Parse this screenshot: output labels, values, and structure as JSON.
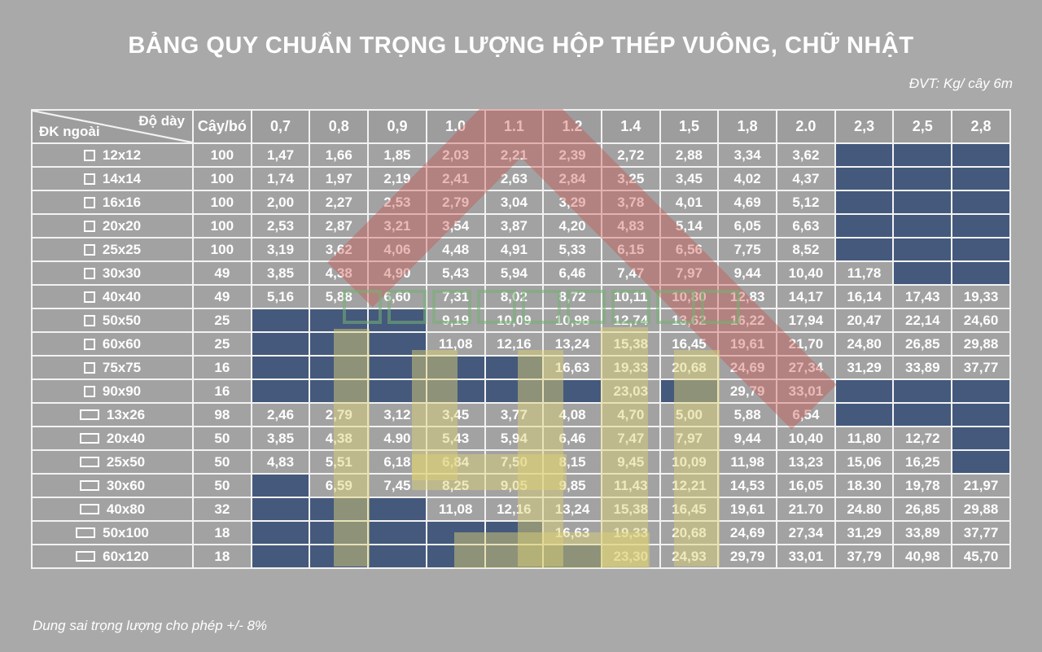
{
  "title": "BẢNG QUY CHUẨN TRỌNG LƯỢNG HỘP THÉP VUÔNG, CHỮ NHẬT",
  "unit_note": "ĐVT: Kg/ cây 6m",
  "footer_note": "Dung sai trọng lượng cho phép +/- 8%",
  "colors": {
    "background": "#a9a9a9",
    "cell": "#a2a2a2",
    "header_cell": "#9d9d9d",
    "empty_cell": "#44597c",
    "grid_border": "#f2f2f2",
    "text": "#ffffff",
    "watermark_red": "#c8524c",
    "watermark_yellow": "#ded277",
    "watermark_green": "#74b172"
  },
  "table": {
    "corner": {
      "top_right": "Độ dày",
      "bottom_left": "ĐK ngoài"
    },
    "bundle_header": "Cây/bó",
    "thickness_headers": [
      "0,7",
      "0,8",
      "0,9",
      "1.0",
      "1.1",
      "1.2",
      "1.4",
      "1,5",
      "1,8",
      "2.0",
      "2,3",
      "2,5",
      "2,8"
    ],
    "rows": [
      {
        "label": "12x12",
        "shape": "square",
        "bundle": "100",
        "values": [
          "1,47",
          "1,66",
          "1,85",
          "2,03",
          "2,21",
          "2,39",
          "2,72",
          "2,88",
          "3,34",
          "3,62",
          null,
          null,
          null
        ]
      },
      {
        "label": "14x14",
        "shape": "square",
        "bundle": "100",
        "values": [
          "1,74",
          "1,97",
          "2,19",
          "2,41",
          "2,63",
          "2,84",
          "3,25",
          "3,45",
          "4,02",
          "4,37",
          null,
          null,
          null
        ]
      },
      {
        "label": "16x16",
        "shape": "square",
        "bundle": "100",
        "values": [
          "2,00",
          "2,27",
          "2,53",
          "2,79",
          "3,04",
          "3,29",
          "3,78",
          "4,01",
          "4,69",
          "5,12",
          null,
          null,
          null
        ]
      },
      {
        "label": "20x20",
        "shape": "square",
        "bundle": "100",
        "values": [
          "2,53",
          "2,87",
          "3,21",
          "3,54",
          "3,87",
          "4,20",
          "4,83",
          "5,14",
          "6,05",
          "6,63",
          null,
          null,
          null
        ]
      },
      {
        "label": "25x25",
        "shape": "square",
        "bundle": "100",
        "values": [
          "3,19",
          "3,62",
          "4,06",
          "4,48",
          "4,91",
          "5,33",
          "6,15",
          "6,56",
          "7,75",
          "8,52",
          null,
          null,
          null
        ]
      },
      {
        "label": "30x30",
        "shape": "square",
        "bundle": "49",
        "values": [
          "3,85",
          "4,38",
          "4,90",
          "5,43",
          "5,94",
          "6,46",
          "7,47",
          "7,97",
          "9,44",
          "10,40",
          "11,78",
          null,
          null
        ]
      },
      {
        "label": "40x40",
        "shape": "square",
        "bundle": "49",
        "values": [
          "5,16",
          "5,88",
          "6,60",
          "7,31",
          "8,02",
          "8,72",
          "10,11",
          "10,80",
          "12,83",
          "14,17",
          "16,14",
          "17,43",
          "19,33"
        ]
      },
      {
        "label": "50x50",
        "shape": "square",
        "bundle": "25",
        "values": [
          null,
          null,
          null,
          "9,19",
          "10,09",
          "10,98",
          "12,74",
          "13,62",
          "16,22",
          "17,94",
          "20,47",
          "22,14",
          "24,60"
        ]
      },
      {
        "label": "60x60",
        "shape": "square",
        "bundle": "25",
        "values": [
          null,
          null,
          null,
          "11,08",
          "12,16",
          "13,24",
          "15,38",
          "16,45",
          "19,61",
          "21,70",
          "24,80",
          "26,85",
          "29,88"
        ]
      },
      {
        "label": "75x75",
        "shape": "square",
        "bundle": "16",
        "values": [
          null,
          null,
          null,
          null,
          null,
          "16,63",
          "19,33",
          "20,68",
          "24,69",
          "27,34",
          "31,29",
          "33,89",
          "37,77"
        ]
      },
      {
        "label": "90x90",
        "shape": "square",
        "bundle": "16",
        "values": [
          null,
          null,
          null,
          null,
          null,
          null,
          "23,03",
          null,
          "29,79",
          "33,01",
          null,
          null,
          null
        ]
      },
      {
        "label": "13x26",
        "shape": "rect",
        "bundle": "98",
        "values": [
          "2,46",
          "2,79",
          "3,12",
          "3,45",
          "3,77",
          "4,08",
          "4,70",
          "5,00",
          "5,88",
          "6,54",
          null,
          null,
          null
        ]
      },
      {
        "label": "20x40",
        "shape": "rect",
        "bundle": "50",
        "values": [
          "3,85",
          "4,38",
          "4.90",
          "5,43",
          "5,94",
          "6,46",
          "7,47",
          "7,97",
          "9,44",
          "10,40",
          "11,80",
          "12,72",
          null
        ]
      },
      {
        "label": "25x50",
        "shape": "rect",
        "bundle": "50",
        "values": [
          "4,83",
          "5,51",
          "6,18",
          "6,84",
          "7,50",
          "8,15",
          "9,45",
          "10,09",
          "11,98",
          "13,23",
          "15,06",
          "16,25",
          null
        ]
      },
      {
        "label": "30x60",
        "shape": "rect",
        "bundle": "50",
        "values": [
          null,
          "6,59",
          "7,45",
          "8,25",
          "9,05",
          "9,85",
          "11,43",
          "12,21",
          "14,53",
          "16,05",
          "18.30",
          "19,78",
          "21,97"
        ]
      },
      {
        "label": "40x80",
        "shape": "rect",
        "bundle": "32",
        "values": [
          null,
          null,
          null,
          "11,08",
          "12,16",
          "13,24",
          "15,38",
          "16,45",
          "19,61",
          "21.70",
          "24.80",
          "26,85",
          "29,88"
        ]
      },
      {
        "label": "50x100",
        "shape": "rect",
        "bundle": "18",
        "values": [
          null,
          null,
          null,
          null,
          null,
          "16,63",
          "19,33",
          "20,68",
          "24,69",
          "27,34",
          "31,29",
          "33,89",
          "37,77"
        ]
      },
      {
        "label": "60x120",
        "shape": "rect",
        "bundle": "18",
        "values": [
          null,
          null,
          null,
          null,
          null,
          null,
          "23,30",
          "24,93",
          "29,79",
          "33,01",
          "37,79",
          "40,98",
          "45,70"
        ]
      }
    ]
  }
}
